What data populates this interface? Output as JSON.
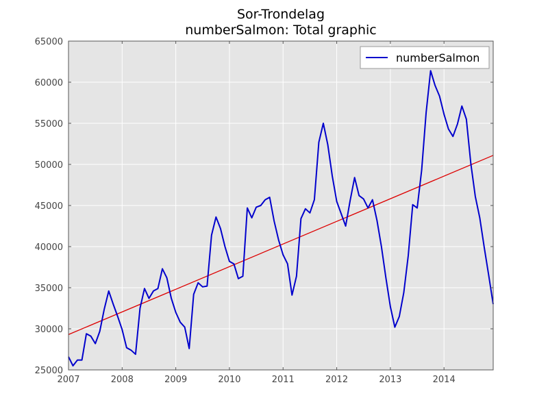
{
  "chart_data": {
    "type": "line",
    "title": "Sor-Trondelag",
    "subtitle": "numberSalmon: Total graphic",
    "xlabel": "",
    "ylabel": "",
    "xlim": [
      2007.0,
      2014.917
    ],
    "ylim": [
      25000,
      65000
    ],
    "x_ticks": [
      2007,
      2008,
      2009,
      2010,
      2011,
      2012,
      2013,
      2014
    ],
    "y_ticks": [
      25000,
      30000,
      35000,
      40000,
      45000,
      50000,
      55000,
      60000,
      65000
    ],
    "grid": true,
    "legend": {
      "position": "top-right",
      "entries": [
        "numberSalmon"
      ]
    },
    "series": [
      {
        "name": "numberSalmon",
        "color": "#0000cc",
        "start": "2007-01",
        "frequency": "monthly",
        "values": [
          26600,
          25500,
          26200,
          26200,
          29400,
          29100,
          28200,
          29700,
          32400,
          34600,
          33000,
          31500,
          29900,
          27700,
          27400,
          26900,
          32500,
          34900,
          33700,
          34600,
          34900,
          37300,
          36200,
          33700,
          32000,
          30800,
          30200,
          27600,
          34200,
          35600,
          35100,
          35200,
          41400,
          43600,
          42200,
          40000,
          38200,
          37900,
          36100,
          36400,
          44700,
          43500,
          44800,
          45000,
          45700,
          46000,
          43100,
          40800,
          39000,
          37900,
          34100,
          36400,
          43400,
          44600,
          44100,
          45700,
          52700,
          55000,
          52400,
          48600,
          45500,
          44000,
          42500,
          45600,
          48400,
          46200,
          45800,
          44700,
          45700,
          43200,
          40000,
          36200,
          32700,
          30200,
          31500,
          34400,
          38900,
          45100,
          44700,
          49300,
          56300,
          61400,
          59600,
          58300,
          56100,
          54300,
          53400,
          54900,
          57100,
          55500,
          50100,
          46100,
          43500,
          39900,
          36500,
          33000
        ]
      }
    ],
    "trend_line": {
      "color": "#dd0000",
      "start": [
        2007.0,
        29300
      ],
      "end": [
        2014.917,
        51100
      ]
    }
  }
}
